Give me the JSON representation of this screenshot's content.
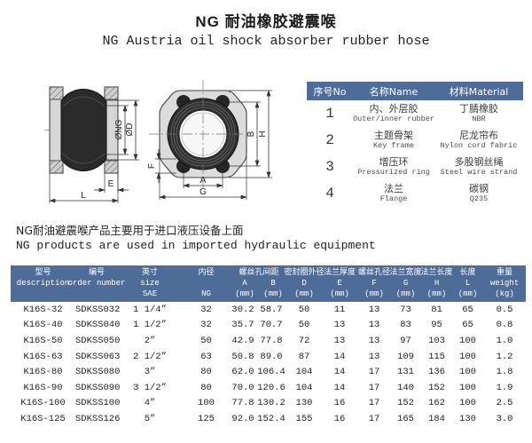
{
  "page": {
    "title": "NG 耐油橡胶避震喉",
    "subtitle": "NG Austria oil shock absorber rubber hose",
    "note_zh": "NG耐油避震喉产品主要用于进口液压设备上面",
    "note_en": "NG products are used in imported hydraulic equipment"
  },
  "colors": {
    "header_bg": "#4e6c98",
    "header_text": "#ffffff",
    "body_text": "#333333"
  },
  "drawing": {
    "labels": {
      "ng": "ØNG",
      "d": "ØD",
      "e": "E",
      "l": "L",
      "f": "F",
      "a": "A",
      "g": "G",
      "b": "B",
      "h": "H"
    }
  },
  "materials_table": {
    "headers": [
      "序号No",
      "名称Name",
      "材料Material"
    ],
    "rows": [
      {
        "no": "1",
        "name_zh": "内、外层胶",
        "name_en": "Outer/inner rubber",
        "mat_zh": "丁腈橡胶",
        "mat_en": "NBR"
      },
      {
        "no": "2",
        "name_zh": "主题骨架",
        "name_en": "Key frame",
        "mat_zh": "尼龙帘布",
        "mat_en": "Nylon cord fabric"
      },
      {
        "no": "3",
        "name_zh": "增压环",
        "name_en": "Pressurized ring",
        "mat_zh": "多股钢丝绳",
        "mat_en": "Steel wire strand"
      },
      {
        "no": "4",
        "name_zh": "法兰",
        "name_en": "Flange",
        "mat_zh": "碳钢",
        "mat_en": "Q235"
      }
    ]
  },
  "spec_table": {
    "header": {
      "desc": [
        "型号",
        "description"
      ],
      "order": [
        "编号",
        "order number"
      ],
      "size": [
        "英寸",
        "size",
        "SAE"
      ],
      "ng": [
        "内径",
        "",
        "NG"
      ],
      "bolt_spacing": "螺丝孔间距",
      "a": [
        "A",
        "(mm)"
      ],
      "b": [
        "B",
        "(mm)"
      ],
      "d": [
        "密封圈外径",
        "D",
        "(mm)"
      ],
      "e": [
        "法兰厚度",
        "E",
        "(mm)"
      ],
      "f": [
        "螺丝孔径",
        "F",
        "(mm)"
      ],
      "g": [
        "法兰宽度",
        "G",
        "(mm)"
      ],
      "h": [
        "法兰长度",
        "H",
        "(mm)"
      ],
      "l": [
        "长度",
        "L",
        "(mm)"
      ],
      "weight": [
        "重量",
        "weight",
        "(kg)"
      ]
    },
    "rows": [
      [
        "K16S-32",
        "SDKSS032",
        "1 1/4”",
        "32",
        "30.2",
        "58.7",
        "50",
        "11",
        "13",
        "73",
        "81",
        "65",
        "0.5"
      ],
      [
        "K16S-40",
        "SDKSS040",
        "1 1/2”",
        "32",
        "35.7",
        "70.7",
        "50",
        "13",
        "13",
        "83",
        "95",
        "65",
        "0.8"
      ],
      [
        "K16S-50",
        "SDKSS050",
        "2”",
        "50",
        "42.9",
        "77.8",
        "72",
        "13",
        "13",
        "97",
        "103",
        "100",
        "1.0"
      ],
      [
        "K16S-63",
        "SDKSS063",
        "2 1/2”",
        "63",
        "50.8",
        "89.0",
        "87",
        "14",
        "13",
        "109",
        "115",
        "100",
        "1.2"
      ],
      [
        "K16S-80",
        "SDKSS080",
        "3”",
        "80",
        "62.0",
        "106.4",
        "104",
        "14",
        "17",
        "131",
        "136",
        "100",
        "1.8"
      ],
      [
        "K16S-90",
        "SDKSS090",
        "3 1/2”",
        "80",
        "70.0",
        "120.6",
        "104",
        "14",
        "17",
        "140",
        "152",
        "100",
        "1.9"
      ],
      [
        "K16S-100",
        "SDKSS100",
        "4”",
        "100",
        "77.8",
        "130.2",
        "130",
        "16",
        "17",
        "152",
        "162",
        "100",
        "2.5"
      ],
      [
        "K16S-125",
        "SDKSS126",
        "5”",
        "125",
        "92.0",
        "152.4",
        "155",
        "16",
        "17",
        "165",
        "184",
        "130",
        "3.0"
      ]
    ]
  }
}
